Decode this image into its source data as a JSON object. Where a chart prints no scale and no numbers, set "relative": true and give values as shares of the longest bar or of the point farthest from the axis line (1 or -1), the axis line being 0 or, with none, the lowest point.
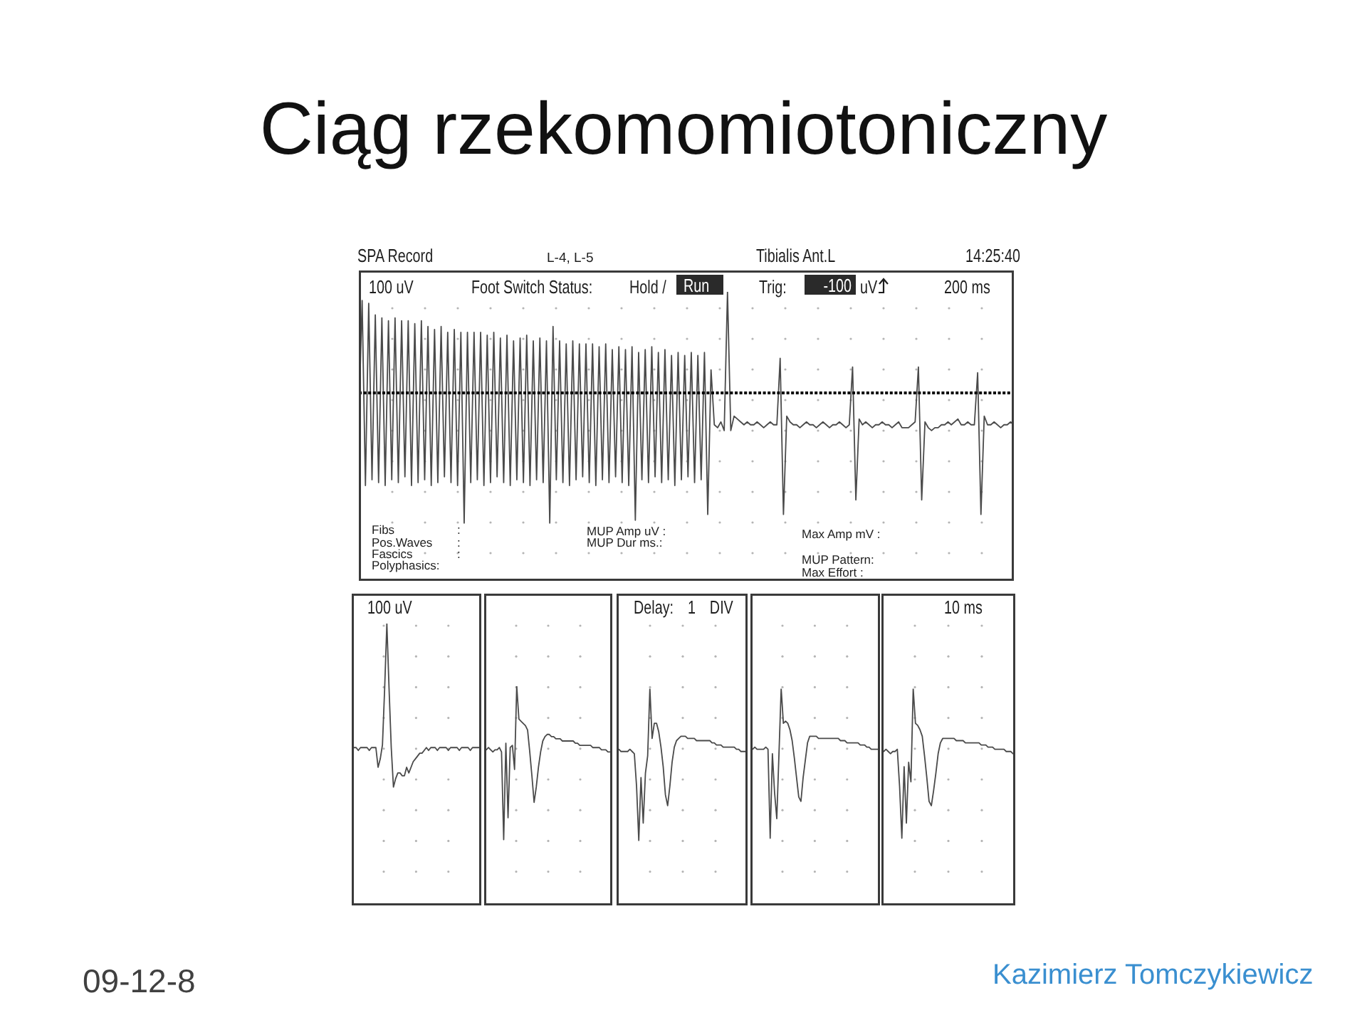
{
  "chart_data": [
    {
      "type": "line",
      "title": "Ciąg rzekomomiotoniczny",
      "relative": true,
      "color": "#4a4a4a",
      "categories": [
        null,
        null,
        null,
        null,
        null,
        null,
        null,
        null,
        null,
        null,
        null,
        null,
        null,
        null,
        null,
        null,
        null,
        null,
        null,
        null,
        null,
        null,
        null,
        null,
        null,
        null,
        null,
        null,
        null,
        null,
        null,
        null,
        null,
        null,
        null,
        null,
        null,
        null,
        null,
        null,
        null,
        null,
        null,
        null,
        null,
        null,
        null,
        null,
        null,
        null,
        null,
        null,
        null,
        null,
        null,
        null,
        null,
        null,
        null,
        null,
        null,
        null,
        null,
        null,
        null,
        null,
        null,
        null,
        null,
        null,
        null,
        null,
        null,
        null,
        null,
        null,
        null,
        null,
        null,
        null,
        null,
        null,
        null,
        null,
        null,
        null,
        null,
        null,
        null,
        null,
        null,
        null,
        null,
        null,
        null,
        null,
        null,
        null,
        null,
        null,
        null,
        null,
        null,
        null,
        null,
        null,
        null,
        null,
        null,
        null,
        null,
        null,
        null,
        null,
        null,
        null,
        null,
        null,
        null,
        null,
        null,
        null,
        null,
        null,
        null,
        null,
        null,
        null,
        null,
        null,
        null,
        null,
        null,
        null,
        null,
        null,
        null,
        null,
        null,
        null,
        null,
        null,
        null,
        null,
        null,
        null,
        null,
        null,
        null,
        null,
        null,
        null,
        null,
        null,
        null,
        null,
        null,
        null,
        null,
        null,
        null,
        null,
        null,
        null,
        null,
        null,
        null,
        null,
        null,
        null,
        null,
        null,
        null,
        null,
        null,
        null,
        null,
        null,
        null,
        null,
        null,
        null,
        null,
        null,
        null,
        null,
        null,
        null,
        null,
        null,
        null,
        null,
        null,
        null,
        null,
        null,
        null,
        null,
        null,
        null
      ],
      "values": [
        0.56,
        0.97,
        0.33,
        0.96,
        0.35,
        0.92,
        0.34,
        0.91,
        0.33,
        0.9,
        0.35,
        0.91,
        0.34,
        0.9,
        0.36,
        0.9,
        0.33,
        0.89,
        0.34,
        0.9,
        0.35,
        0.88,
        0.33,
        0.87,
        0.34,
        0.88,
        0.36,
        0.86,
        0.34,
        0.87,
        0.33,
        0.86,
        0.2,
        0.86,
        0.34,
        0.86,
        0.35,
        0.86,
        0.33,
        0.85,
        0.34,
        0.86,
        0.36,
        0.84,
        0.34,
        0.85,
        0.33,
        0.83,
        0.35,
        0.84,
        0.34,
        0.85,
        0.33,
        0.83,
        0.35,
        0.84,
        0.34,
        0.83,
        0.2,
        0.88,
        0.35,
        0.83,
        0.34,
        0.82,
        0.33,
        0.83,
        0.35,
        0.82,
        0.36,
        0.82,
        0.34,
        0.82,
        0.33,
        0.81,
        0.35,
        0.82,
        0.34,
        0.8,
        0.36,
        0.81,
        0.34,
        0.8,
        0.33,
        0.81,
        0.21,
        0.79,
        0.35,
        0.8,
        0.34,
        0.81,
        0.36,
        0.79,
        0.34,
        0.8,
        0.35,
        0.78,
        0.33,
        0.79,
        0.35,
        0.78,
        0.36,
        0.79,
        0.34,
        0.78,
        0.35,
        0.79,
        0.23,
        0.73,
        0.54,
        0.53,
        0.55,
        0.52,
        1,
        0.52,
        0.57,
        0.56,
        0.55,
        0.54,
        0.55,
        0.54,
        0.54,
        0.55,
        0.54,
        0.53,
        0.54,
        0.55,
        0.54,
        0.54,
        0.77,
        0.23,
        0.57,
        0.55,
        0.54,
        0.54,
        0.53,
        0.54,
        0.55,
        0.54,
        0.54,
        0.53,
        0.54,
        0.55,
        0.54,
        0.53,
        0.54,
        0.54,
        0.55,
        0.54,
        0.53,
        0.54,
        0.74,
        0.28,
        0.56,
        0.54,
        0.55,
        0.54,
        0.53,
        0.54,
        0.54,
        0.55,
        0.54,
        0.54,
        0.53,
        0.54,
        0.55,
        0.53,
        0.53,
        0.53,
        0.54,
        0.55,
        0.74,
        0.28,
        0.55,
        0.53,
        0.52,
        0.53,
        0.53,
        0.54,
        0.54,
        0.55,
        0.54,
        0.55,
        0.56,
        0.54,
        0.54,
        0.55,
        0.54,
        0.54,
        0.72,
        0.23,
        0.57,
        0.54,
        0.54,
        0.55,
        0.54,
        0.53,
        0.54,
        0.54,
        0.55,
        0.54
      ],
      "ref_lines": [
        {
          "axis": "y",
          "value": 0.65,
          "line_style": "dotted",
          "color": "#000000"
        }
      ],
      "annotations": [
        "SPA Record",
        "L-4, L-5",
        "Tibialis Ant.L",
        "14:25:40",
        "100 uV",
        "Foot Switch Status:",
        "Hold /",
        "Run",
        "Trig:",
        "-100",
        "uV",
        "200 ms",
        "Fibs",
        ":",
        "Pos.Waves",
        ":",
        "Fascics",
        ":",
        "Polyphasics:",
        "MUP Amp uV :",
        "MUP Dur ms.:",
        "Max Amp mV :",
        "MUP Pattern:",
        "Max Effort :",
        "09-12-8",
        "Kazimierz Tomczykiewicz"
      ]
    },
    {
      "type": "line",
      "relative": true,
      "color": "#4a4a4a",
      "categories": [
        null,
        null,
        null,
        null,
        null,
        null,
        null,
        null,
        null,
        null,
        null,
        null,
        null,
        null,
        null,
        null,
        null,
        null,
        null,
        null,
        null,
        null,
        null,
        null,
        null,
        null,
        null,
        null,
        null,
        null,
        null,
        null,
        null,
        null,
        null,
        null,
        null,
        null,
        null,
        null,
        null,
        null,
        null,
        null,
        null,
        null,
        null,
        null,
        null,
        null,
        null,
        null,
        null,
        null,
        null,
        null,
        null,
        null,
        null,
        null
      ],
      "values": [
        0.56,
        0.56,
        0.56,
        0.55,
        0.56,
        0.56,
        0.56,
        0.56,
        0.55,
        0.56,
        0.56,
        0.56,
        0.49,
        0.52,
        0.57,
        0.77,
        1,
        0.77,
        0.56,
        0.42,
        0.45,
        0.47,
        0.47,
        0.46,
        0.46,
        0.49,
        0.47,
        0.49,
        0.51,
        0.52,
        0.53,
        0.54,
        0.54,
        0.55,
        0.56,
        0.55,
        0.56,
        0.56,
        0.56,
        0.55,
        0.56,
        0.56,
        0.56,
        0.56,
        0.55,
        0.56,
        0.56,
        0.56,
        0.56,
        0.55,
        0.56,
        0.56,
        0.56,
        0.56,
        0.55,
        0.56,
        0.56,
        0.56,
        0.56,
        0.56
      ],
      "annotations": [
        "100 uV"
      ]
    },
    {
      "type": "line",
      "relative": true,
      "color": "#4a4a4a",
      "categories": [
        null,
        null,
        null,
        null,
        null,
        null,
        null,
        null,
        null,
        null,
        null,
        null,
        null,
        null,
        null,
        null,
        null,
        null,
        null,
        null,
        null,
        null,
        null,
        null,
        null,
        null,
        null,
        null,
        null,
        null,
        null,
        null,
        null,
        null,
        null,
        null,
        null,
        null,
        null,
        null,
        null,
        null,
        null,
        null,
        null,
        null,
        null,
        null,
        null,
        null,
        null,
        null,
        null,
        null,
        null,
        null,
        null,
        null,
        null,
        null
      ],
      "values": [
        0.71,
        0.71,
        0.72,
        0.71,
        0.7,
        0.71,
        0.71,
        0.72,
        0.7,
        0.3,
        0.74,
        0.4,
        0.72,
        0.73,
        0.62,
        1,
        0.85,
        0.84,
        0.83,
        0.82,
        0.8,
        0.7,
        0.59,
        0.47,
        0.54,
        0.63,
        0.7,
        0.75,
        0.77,
        0.78,
        0.78,
        0.77,
        0.77,
        0.76,
        0.76,
        0.76,
        0.75,
        0.75,
        0.75,
        0.75,
        0.75,
        0.75,
        0.74,
        0.74,
        0.73,
        0.73,
        0.73,
        0.73,
        0.73,
        0.73,
        0.72,
        0.72,
        0.72,
        0.72,
        0.71,
        0.71,
        0.71,
        0.7,
        0.7,
        0.7
      ]
    },
    {
      "type": "line",
      "relative": true,
      "color": "#4a4a4a",
      "categories": [
        null,
        null,
        null,
        null,
        null,
        null,
        null,
        null,
        null,
        null,
        null,
        null,
        null,
        null,
        null,
        null,
        null,
        null,
        null,
        null,
        null,
        null,
        null,
        null,
        null,
        null,
        null,
        null,
        null,
        null,
        null,
        null,
        null,
        null,
        null,
        null,
        null,
        null,
        null,
        null,
        null,
        null,
        null,
        null,
        null,
        null,
        null,
        null,
        null,
        null,
        null,
        null,
        null,
        null,
        null,
        null,
        null,
        null,
        null,
        null
      ],
      "values": [
        0.71,
        0.72,
        0.71,
        0.71,
        0.71,
        0.71,
        0.72,
        0.71,
        0.7,
        0.55,
        0.3,
        0.59,
        0.38,
        0.61,
        0.69,
        1,
        0.77,
        0.84,
        0.84,
        0.8,
        0.73,
        0.64,
        0.51,
        0.46,
        0.55,
        0.66,
        0.73,
        0.76,
        0.77,
        0.78,
        0.78,
        0.78,
        0.77,
        0.77,
        0.77,
        0.77,
        0.76,
        0.76,
        0.76,
        0.76,
        0.76,
        0.76,
        0.76,
        0.75,
        0.75,
        0.74,
        0.74,
        0.74,
        0.73,
        0.73,
        0.73,
        0.73,
        0.73,
        0.73,
        0.72,
        0.72,
        0.71,
        0.71,
        0.71,
        0.71
      ],
      "annotations": [
        "Delay: 1 DIV"
      ]
    },
    {
      "type": "line",
      "relative": true,
      "color": "#4a4a4a",
      "categories": [
        null,
        null,
        null,
        null,
        null,
        null,
        null,
        null,
        null,
        null,
        null,
        null,
        null,
        null,
        null,
        null,
        null,
        null,
        null,
        null,
        null,
        null,
        null,
        null,
        null,
        null,
        null,
        null,
        null,
        null,
        null,
        null,
        null,
        null,
        null,
        null,
        null,
        null,
        null,
        null,
        null,
        null,
        null,
        null,
        null,
        null,
        null,
        null,
        null,
        null,
        null,
        null,
        null,
        null,
        null,
        null,
        null,
        null,
        null,
        null
      ],
      "values": [
        0.72,
        0.72,
        0.73,
        0.72,
        0.72,
        0.72,
        0.72,
        0.73,
        0.72,
        0.31,
        0.7,
        0.52,
        0.4,
        0.7,
        1,
        0.84,
        0.85,
        0.84,
        0.81,
        0.76,
        0.68,
        0.59,
        0.5,
        0.48,
        0.59,
        0.67,
        0.75,
        0.78,
        0.78,
        0.78,
        0.78,
        0.77,
        0.77,
        0.77,
        0.77,
        0.77,
        0.77,
        0.77,
        0.77,
        0.77,
        0.77,
        0.76,
        0.76,
        0.76,
        0.75,
        0.75,
        0.75,
        0.75,
        0.75,
        0.75,
        0.74,
        0.74,
        0.74,
        0.73,
        0.73,
        0.72,
        0.72,
        0.72,
        0.72,
        0.72
      ]
    },
    {
      "type": "line",
      "relative": true,
      "color": "#4a4a4a",
      "categories": [
        null,
        null,
        null,
        null,
        null,
        null,
        null,
        null,
        null,
        null,
        null,
        null,
        null,
        null,
        null,
        null,
        null,
        null,
        null,
        null,
        null,
        null,
        null,
        null,
        null,
        null,
        null,
        null,
        null,
        null,
        null,
        null,
        null,
        null,
        null,
        null,
        null,
        null,
        null,
        null,
        null,
        null,
        null,
        null,
        null,
        null,
        null,
        null,
        null,
        null,
        null,
        null,
        null,
        null,
        null,
        null,
        null,
        null,
        null,
        null
      ],
      "values": [
        0.71,
        0.71,
        0.72,
        0.71,
        0.7,
        0.71,
        0.71,
        0.72,
        0.55,
        0.31,
        0.64,
        0.38,
        0.66,
        0.57,
        1,
        0.84,
        0.83,
        0.81,
        0.78,
        0.69,
        0.59,
        0.48,
        0.46,
        0.53,
        0.61,
        0.7,
        0.75,
        0.77,
        0.77,
        0.77,
        0.77,
        0.77,
        0.77,
        0.76,
        0.76,
        0.76,
        0.76,
        0.75,
        0.75,
        0.75,
        0.75,
        0.75,
        0.75,
        0.75,
        0.74,
        0.74,
        0.74,
        0.73,
        0.73,
        0.73,
        0.72,
        0.72,
        0.72,
        0.72,
        0.72,
        0.71,
        0.71,
        0.71,
        0.7,
        0.7
      ],
      "annotations": [
        "10 ms"
      ]
    }
  ]
}
